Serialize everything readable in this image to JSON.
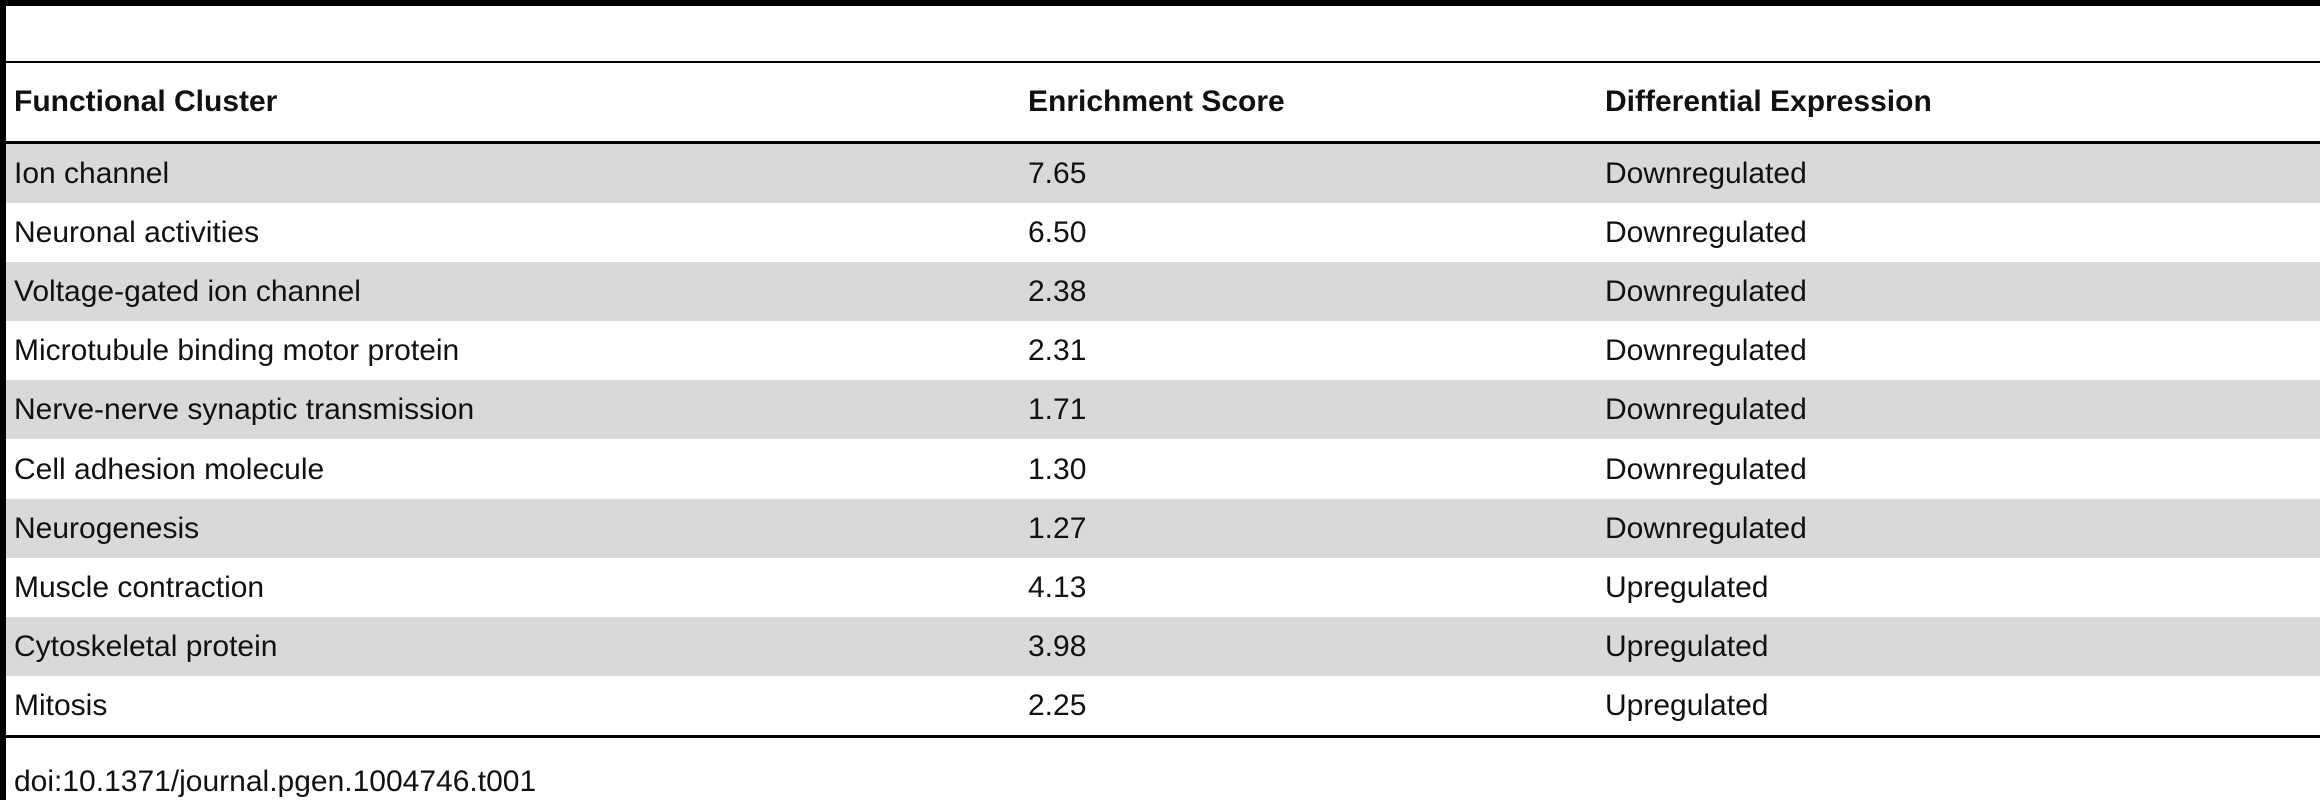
{
  "table": {
    "headers": [
      "Functional Cluster",
      "Enrichment Score",
      "Differential Expression"
    ],
    "rows": [
      [
        "Ion channel",
        "7.65",
        "Downregulated"
      ],
      [
        "Neuronal activities",
        "6.50",
        "Downregulated"
      ],
      [
        "Voltage-gated ion channel",
        "2.38",
        "Downregulated"
      ],
      [
        "Microtubule binding motor protein",
        "2.31",
        "Downregulated"
      ],
      [
        "Nerve-nerve synaptic transmission",
        "1.71",
        "Downregulated"
      ],
      [
        "Cell adhesion molecule",
        "1.30",
        "Downregulated"
      ],
      [
        "Neurogenesis",
        "1.27",
        "Downregulated"
      ],
      [
        "Muscle contraction",
        "4.13",
        "Upregulated"
      ],
      [
        "Cytoskeletal protein",
        "3.98",
        "Upregulated"
      ],
      [
        "Mitosis",
        "2.25",
        "Upregulated"
      ]
    ]
  },
  "footer": {
    "doi": "doi:10.1371/journal.pgen.1004746.t001"
  }
}
